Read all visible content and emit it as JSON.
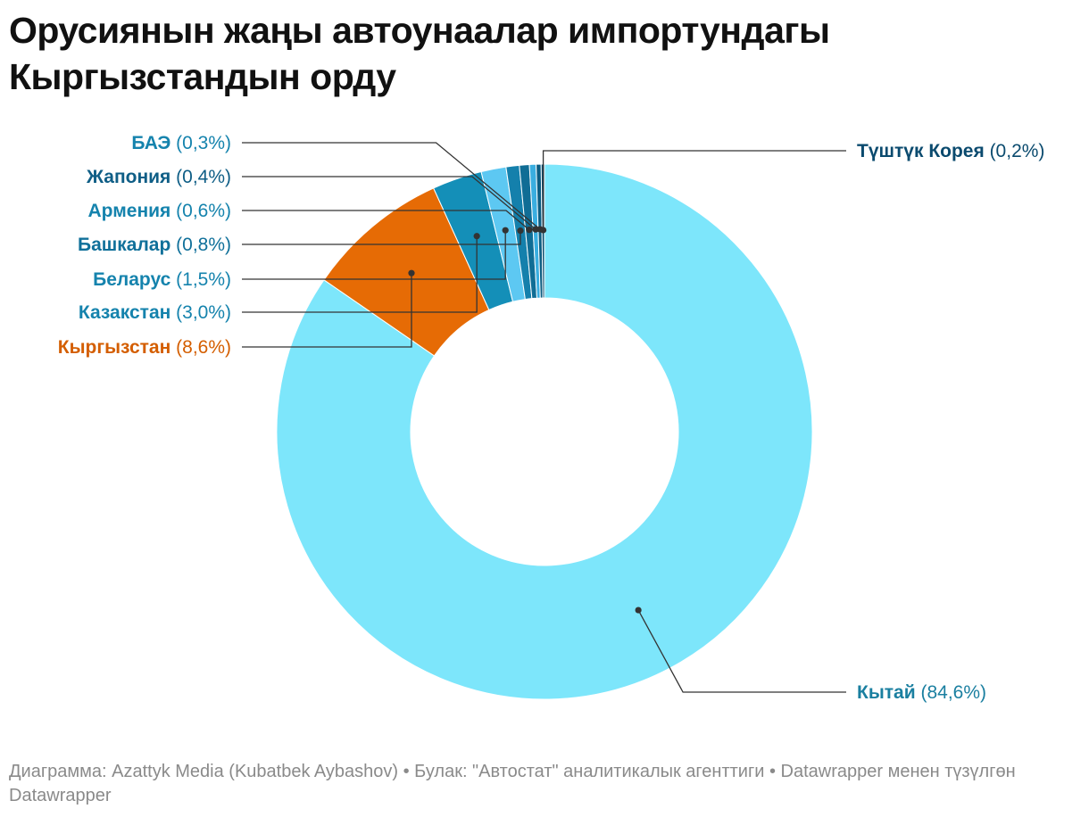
{
  "title": "Орусиянын жаңы автоунаалар импортундагы Кыргызстандын орду",
  "footer": "Диаграмма: Azattyk Media (Kubatbek Aybashov) • Булак: \"Автостат\" аналитикалык агенттиги • Datawrapper менен түзүлгөн Datawrapper",
  "chart_data": {
    "type": "pie",
    "variant": "donut",
    "title": "Орусиянын жаңы автоунаалар импортундагы Кыргызстандын орду",
    "unit": "%",
    "slices": [
      {
        "name": "Кытай",
        "value": 84.6,
        "label": "(84,6%)",
        "color": "#7de6fb",
        "text_color": "#1a7fa0"
      },
      {
        "name": "Кыргызстан",
        "value": 8.6,
        "label": "(8,6%)",
        "color": "#e66b05",
        "text_color": "#d45e00"
      },
      {
        "name": "Казакстан",
        "value": 3.0,
        "label": "(3,0%)",
        "color": "#148fb8",
        "text_color": "#1583ad"
      },
      {
        "name": "Беларус",
        "value": 1.5,
        "label": "(1,5%)",
        "color": "#5dc8f2",
        "text_color": "#1583ad"
      },
      {
        "name": "Башкалар",
        "value": 0.8,
        "label": "(0,8%)",
        "color": "#1480ac",
        "text_color": "#10709a"
      },
      {
        "name": "Армения",
        "value": 0.6,
        "label": "(0,6%)",
        "color": "#106d95",
        "text_color": "#1583ad"
      },
      {
        "name": "Жапония",
        "value": 0.4,
        "label": "(0,4%)",
        "color": "#3aaee0",
        "text_color": "#0f5e86"
      },
      {
        "name": "БАЭ",
        "value": 0.3,
        "label": "(0,3%)",
        "color": "#0c5d82",
        "text_color": "#1583ad"
      },
      {
        "name": "Түштүк Корея",
        "value": 0.2,
        "label": "(0,2%)",
        "color": "#0a4f70",
        "text_color": "#0a4a6e"
      }
    ],
    "label_side": {
      "БАЭ": "left",
      "Жапония": "left",
      "Армения": "left",
      "Башкалар": "left",
      "Беларус": "left",
      "Казакстан": "left",
      "Кыргызстан": "left",
      "Түштүк Корея": "right",
      "Кытай": "right"
    }
  }
}
